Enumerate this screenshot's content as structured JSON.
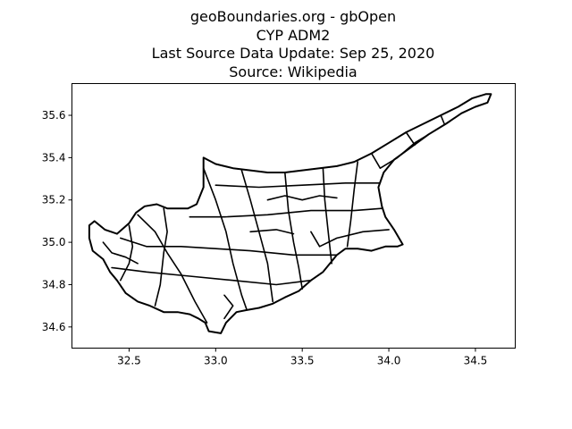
{
  "title": {
    "lines": [
      "geoBoundaries.org - gbOpen",
      "CYP ADM2",
      "Last Source Data Update: Sep 25, 2020",
      "Source: Wikipedia"
    ]
  },
  "chart_data": {
    "type": "map",
    "region": "CYP",
    "admin_level": "ADM2",
    "xlim": [
      32.17,
      34.73
    ],
    "ylim": [
      34.5,
      35.75
    ],
    "x_ticks": [
      32.5,
      33.0,
      33.5,
      34.0,
      34.5
    ],
    "y_ticks": [
      34.6,
      34.8,
      35.0,
      35.2,
      35.4,
      35.6
    ],
    "x_tick_labels": [
      "32.5",
      "33.0",
      "33.5",
      "34.0",
      "34.5"
    ],
    "y_tick_labels": [
      "34.6",
      "34.8",
      "35.0",
      "35.2",
      "35.4",
      "35.6"
    ],
    "outline": [
      [
        32.27,
        35.08
      ],
      [
        32.3,
        35.1
      ],
      [
        32.36,
        35.06
      ],
      [
        32.43,
        35.04
      ],
      [
        32.5,
        35.09
      ],
      [
        32.54,
        35.14
      ],
      [
        32.59,
        35.17
      ],
      [
        32.66,
        35.18
      ],
      [
        32.72,
        35.16
      ],
      [
        32.78,
        35.16
      ],
      [
        32.84,
        35.16
      ],
      [
        32.89,
        35.18
      ],
      [
        32.93,
        35.26
      ],
      [
        32.93,
        35.4
      ],
      [
        33.0,
        35.37
      ],
      [
        33.1,
        35.35
      ],
      [
        33.2,
        35.34
      ],
      [
        33.3,
        35.33
      ],
      [
        33.4,
        35.33
      ],
      [
        33.5,
        35.34
      ],
      [
        33.6,
        35.35
      ],
      [
        33.7,
        35.36
      ],
      [
        33.8,
        35.38
      ],
      [
        33.9,
        35.42
      ],
      [
        34.0,
        35.47
      ],
      [
        34.1,
        35.52
      ],
      [
        34.2,
        35.56
      ],
      [
        34.3,
        35.6
      ],
      [
        34.4,
        35.64
      ],
      [
        34.48,
        35.68
      ],
      [
        34.56,
        35.7
      ],
      [
        34.59,
        35.7
      ],
      [
        34.57,
        35.66
      ],
      [
        34.5,
        35.64
      ],
      [
        34.42,
        35.61
      ],
      [
        34.33,
        35.56
      ],
      [
        34.23,
        35.51
      ],
      [
        34.13,
        35.45
      ],
      [
        34.03,
        35.39
      ],
      [
        33.97,
        35.33
      ],
      [
        33.94,
        35.26
      ],
      [
        33.96,
        35.17
      ],
      [
        33.98,
        35.12
      ],
      [
        34.03,
        35.06
      ],
      [
        34.08,
        34.99
      ],
      [
        34.05,
        34.98
      ],
      [
        33.98,
        34.98
      ],
      [
        33.9,
        34.96
      ],
      [
        33.82,
        34.97
      ],
      [
        33.75,
        34.97
      ],
      [
        33.7,
        34.94
      ],
      [
        33.66,
        34.9
      ],
      [
        33.62,
        34.86
      ],
      [
        33.55,
        34.82
      ],
      [
        33.48,
        34.77
      ],
      [
        33.4,
        34.74
      ],
      [
        33.33,
        34.71
      ],
      [
        33.25,
        34.69
      ],
      [
        33.18,
        34.68
      ],
      [
        33.12,
        34.67
      ],
      [
        33.06,
        34.62
      ],
      [
        33.03,
        34.57
      ],
      [
        32.96,
        34.58
      ],
      [
        32.94,
        34.62
      ],
      [
        32.9,
        34.64
      ],
      [
        32.85,
        34.66
      ],
      [
        32.78,
        34.67
      ],
      [
        32.7,
        34.67
      ],
      [
        32.62,
        34.7
      ],
      [
        32.55,
        34.72
      ],
      [
        32.48,
        34.76
      ],
      [
        32.43,
        34.82
      ],
      [
        32.39,
        34.86
      ],
      [
        32.35,
        34.92
      ],
      [
        32.29,
        34.96
      ],
      [
        32.27,
        35.02
      ]
    ],
    "boundaries": [
      [
        [
          32.55,
          35.13
        ],
        [
          32.65,
          35.05
        ],
        [
          32.72,
          34.95
        ],
        [
          32.8,
          34.85
        ],
        [
          32.88,
          34.72
        ],
        [
          32.95,
          34.62
        ]
      ],
      [
        [
          32.93,
          35.35
        ],
        [
          33.0,
          35.2
        ],
        [
          33.06,
          35.05
        ],
        [
          33.1,
          34.9
        ],
        [
          33.15,
          34.75
        ],
        [
          33.18,
          34.68
        ]
      ],
      [
        [
          33.15,
          35.34
        ],
        [
          33.2,
          35.2
        ],
        [
          33.25,
          35.05
        ],
        [
          33.3,
          34.9
        ],
        [
          33.33,
          34.72
        ]
      ],
      [
        [
          33.4,
          35.33
        ],
        [
          33.42,
          35.15
        ],
        [
          33.45,
          35.0
        ],
        [
          33.48,
          34.88
        ],
        [
          33.5,
          34.78
        ]
      ],
      [
        [
          33.62,
          35.35
        ],
        [
          33.63,
          35.2
        ],
        [
          33.65,
          35.05
        ],
        [
          33.67,
          34.9
        ]
      ],
      [
        [
          33.82,
          35.38
        ],
        [
          33.8,
          35.25
        ],
        [
          33.78,
          35.1
        ],
        [
          33.76,
          34.98
        ]
      ],
      [
        [
          32.45,
          35.02
        ],
        [
          32.6,
          34.98
        ],
        [
          32.8,
          34.98
        ],
        [
          33.0,
          34.97
        ],
        [
          33.2,
          34.96
        ],
        [
          33.45,
          34.94
        ],
        [
          33.7,
          34.94
        ]
      ],
      [
        [
          32.4,
          34.88
        ],
        [
          32.6,
          34.86
        ],
        [
          32.85,
          34.84
        ],
        [
          33.1,
          34.82
        ],
        [
          33.35,
          34.8
        ],
        [
          33.55,
          34.82
        ]
      ],
      [
        [
          32.85,
          35.12
        ],
        [
          33.05,
          35.12
        ],
        [
          33.3,
          35.13
        ],
        [
          33.55,
          35.15
        ],
        [
          33.8,
          35.15
        ],
        [
          33.96,
          35.16
        ]
      ],
      [
        [
          33.0,
          35.27
        ],
        [
          33.25,
          35.26
        ],
        [
          33.5,
          35.27
        ],
        [
          33.75,
          35.28
        ],
        [
          33.95,
          35.28
        ]
      ],
      [
        [
          33.9,
          35.42
        ],
        [
          33.95,
          35.35
        ],
        [
          34.05,
          35.4
        ],
        [
          34.15,
          35.47
        ],
        [
          34.25,
          35.52
        ],
        [
          34.35,
          35.57
        ]
      ],
      [
        [
          34.1,
          35.52
        ],
        [
          34.15,
          35.46
        ]
      ],
      [
        [
          34.3,
          35.6
        ],
        [
          34.32,
          35.56
        ]
      ],
      [
        [
          32.35,
          35.0
        ],
        [
          32.4,
          34.95
        ],
        [
          32.48,
          34.93
        ],
        [
          32.55,
          34.9
        ]
      ],
      [
        [
          32.5,
          35.08
        ],
        [
          32.52,
          34.98
        ],
        [
          32.5,
          34.9
        ],
        [
          32.45,
          34.82
        ]
      ],
      [
        [
          32.7,
          35.16
        ],
        [
          32.72,
          35.05
        ],
        [
          32.7,
          34.95
        ],
        [
          32.68,
          34.8
        ],
        [
          32.65,
          34.7
        ]
      ],
      [
        [
          33.05,
          34.75
        ],
        [
          33.1,
          34.7
        ],
        [
          33.05,
          34.64
        ]
      ],
      [
        [
          33.55,
          35.05
        ],
        [
          33.6,
          34.98
        ],
        [
          33.7,
          35.02
        ],
        [
          33.85,
          35.05
        ],
        [
          34.0,
          35.06
        ]
      ],
      [
        [
          33.3,
          35.2
        ],
        [
          33.4,
          35.22
        ],
        [
          33.5,
          35.2
        ],
        [
          33.6,
          35.22
        ],
        [
          33.7,
          35.21
        ]
      ],
      [
        [
          33.2,
          35.05
        ],
        [
          33.35,
          35.06
        ],
        [
          33.45,
          35.04
        ]
      ]
    ]
  }
}
